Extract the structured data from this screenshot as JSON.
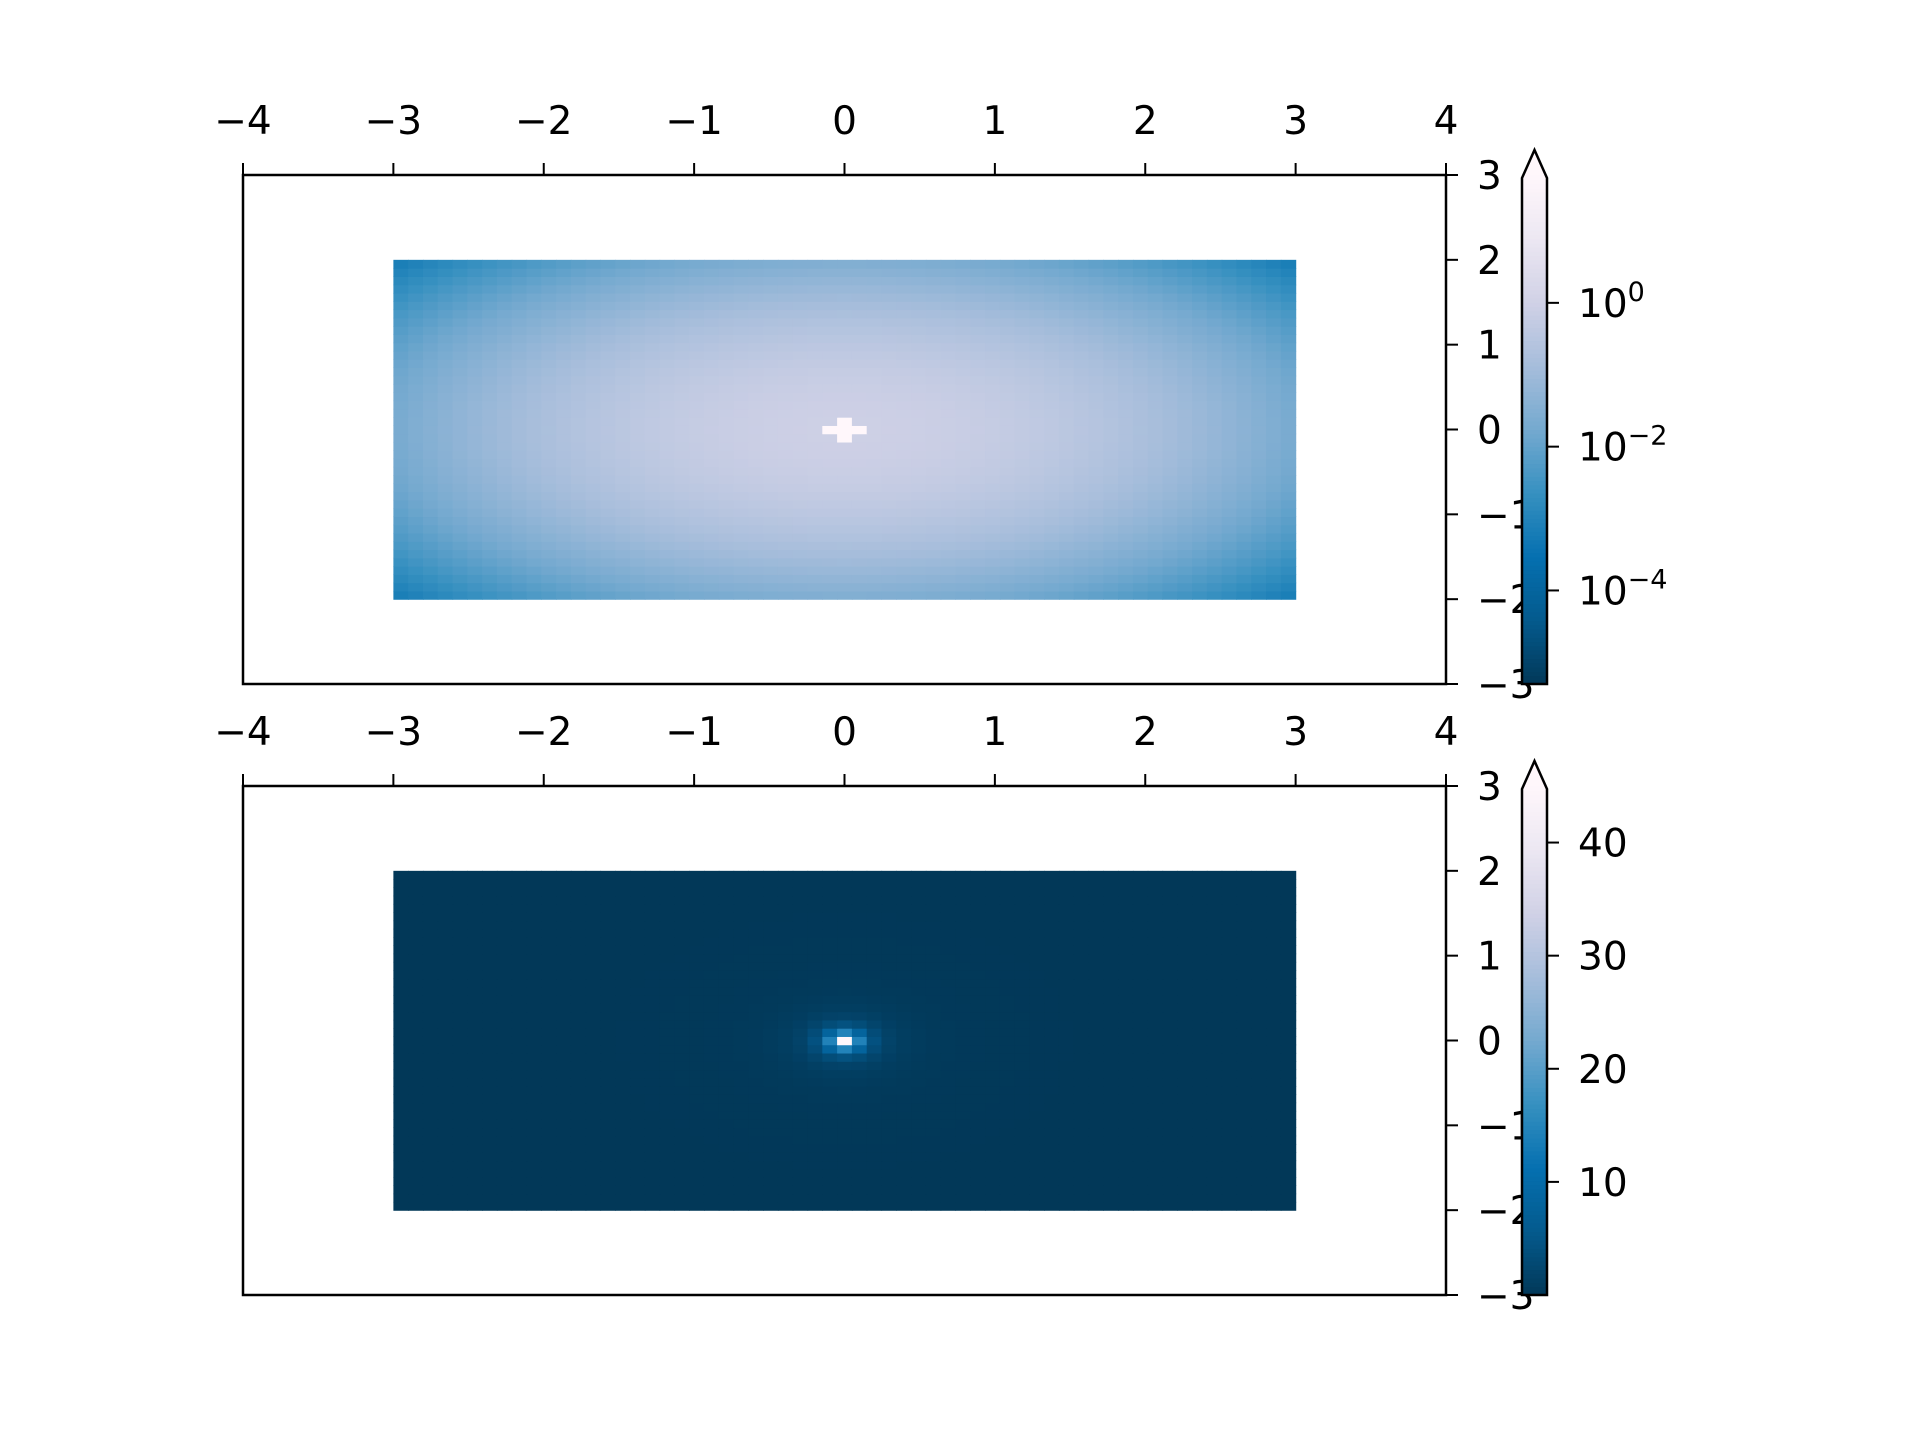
{
  "chart_data": [
    {
      "type": "heatmap",
      "title": "",
      "xlabel": "",
      "ylabel": "",
      "xlim": [
        -4,
        4
      ],
      "ylim": [
        -3,
        3
      ],
      "x_ticks": [
        "−4",
        "−3",
        "−2",
        "−1",
        "0",
        "1",
        "2",
        "3",
        "4"
      ],
      "x_tick_values": [
        -4,
        -3,
        -2,
        -1,
        0,
        1,
        2,
        3,
        4
      ],
      "y_ticks": [
        "3",
        "2",
        "1",
        "0",
        "−1",
        "−2",
        "−3"
      ],
      "y_tick_values": [
        3,
        2,
        1,
        0,
        -1,
        -2,
        -3
      ],
      "x_axis_position": "top",
      "y_axis_position": "right",
      "image_extent": {
        "x": [
          -3,
          3
        ],
        "y": [
          -2,
          2
        ]
      },
      "grid_resolution": [
        61,
        41
      ],
      "peak": {
        "x": 0,
        "y": 0
      },
      "colormap": "PuBu_r",
      "colors": [
        "#023858",
        "#045a8d",
        "#0570b0",
        "#3690c0",
        "#74a9cf",
        "#a6bddb",
        "#d0d1e6",
        "#ece7f2",
        "#fff7fb"
      ],
      "color_scale": "log",
      "colorbar": {
        "ticks": [
          {
            "base": "10",
            "exp": "0",
            "value": 1
          },
          {
            "base": "10",
            "exp": "−2",
            "value": 0.01
          },
          {
            "base": "10",
            "exp": "−4",
            "value": 0.0001
          }
        ],
        "extend": "max",
        "range": [
          5e-06,
          60
        ]
      }
    },
    {
      "type": "heatmap",
      "title": "",
      "xlabel": "",
      "ylabel": "",
      "xlim": [
        -4,
        4
      ],
      "ylim": [
        -3,
        3
      ],
      "x_ticks": [
        "−4",
        "−3",
        "−2",
        "−1",
        "0",
        "1",
        "2",
        "3",
        "4"
      ],
      "x_tick_values": [
        -4,
        -3,
        -2,
        -1,
        0,
        1,
        2,
        3,
        4
      ],
      "y_ticks": [
        "3",
        "2",
        "1",
        "0",
        "−1",
        "−2",
        "−3"
      ],
      "y_tick_values": [
        3,
        2,
        1,
        0,
        -1,
        -2,
        -3
      ],
      "x_axis_position": "top",
      "y_axis_position": "right",
      "image_extent": {
        "x": [
          -3,
          3
        ],
        "y": [
          -2,
          2
        ]
      },
      "grid_resolution": [
        61,
        41
      ],
      "peak": {
        "x": 0,
        "y": 0
      },
      "colormap": "PuBu_r",
      "colors": [
        "#023858",
        "#045a8d",
        "#0570b0",
        "#3690c0",
        "#74a9cf",
        "#a6bddb",
        "#d0d1e6",
        "#ece7f2",
        "#fff7fb"
      ],
      "color_scale": "linear",
      "colorbar": {
        "ticks": [
          {
            "label": "40",
            "value": 40
          },
          {
            "label": "30",
            "value": 30
          },
          {
            "label": "20",
            "value": 20
          },
          {
            "label": "10",
            "value": 10
          }
        ],
        "extend": "max",
        "range": [
          0,
          45
        ]
      }
    }
  ]
}
